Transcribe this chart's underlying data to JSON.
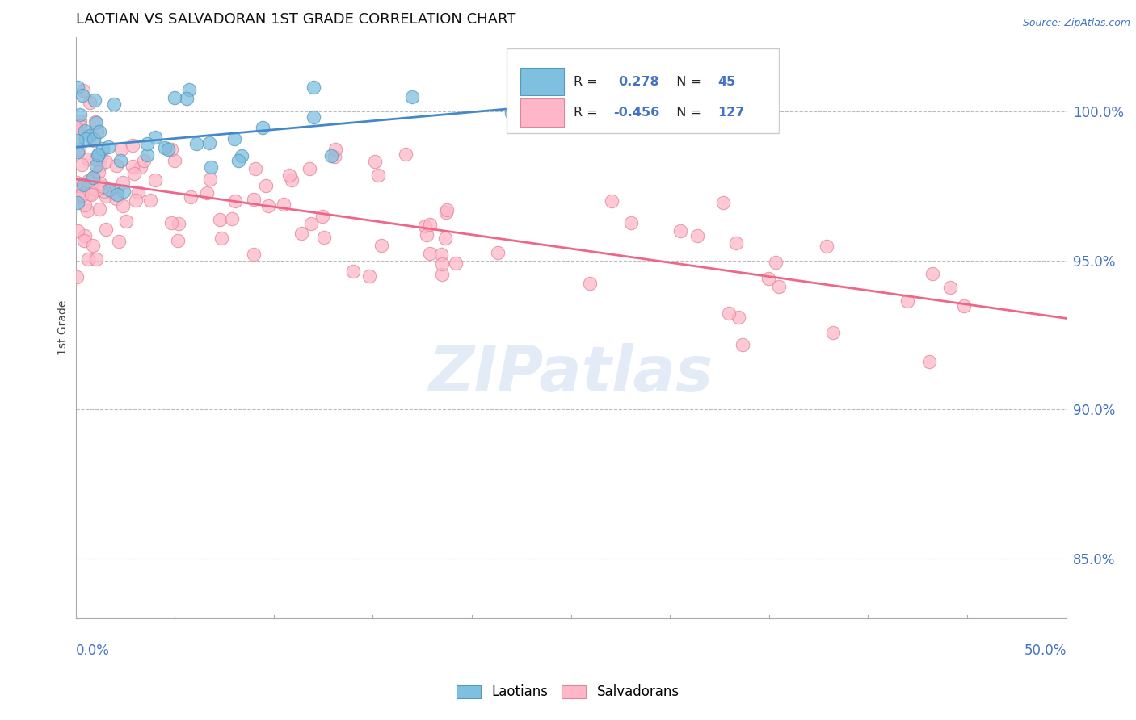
{
  "title": "LAOTIAN VS SALVADORAN 1ST GRADE CORRELATION CHART",
  "source": "Source: ZipAtlas.com",
  "ylabel": "1st Grade",
  "yticks": [
    85.0,
    90.0,
    95.0,
    100.0
  ],
  "xlim": [
    0.0,
    50.0
  ],
  "ylim": [
    83.0,
    102.5
  ],
  "laotian_color": "#7fbfdf",
  "salvadoran_color": "#ffb6c8",
  "laotian_line_color": "#4488cc",
  "salvadoran_line_color": "#ee6688",
  "R_laotian": 0.278,
  "N_laotian": 45,
  "R_salvadoran": -0.456,
  "N_salvadoran": 127,
  "background_color": "#ffffff",
  "watermark": "ZIPatlas",
  "title_fontsize": 13,
  "axis_label_color": "#4472c4",
  "sal_trend_x0": 0.0,
  "sal_trend_y0": 98.2,
  "sal_trend_x1": 50.0,
  "sal_trend_y1": 93.0,
  "lao_trend_x0": 0.0,
  "lao_trend_y0": 97.5,
  "lao_trend_x1": 30.0,
  "lao_trend_y1": 100.0
}
